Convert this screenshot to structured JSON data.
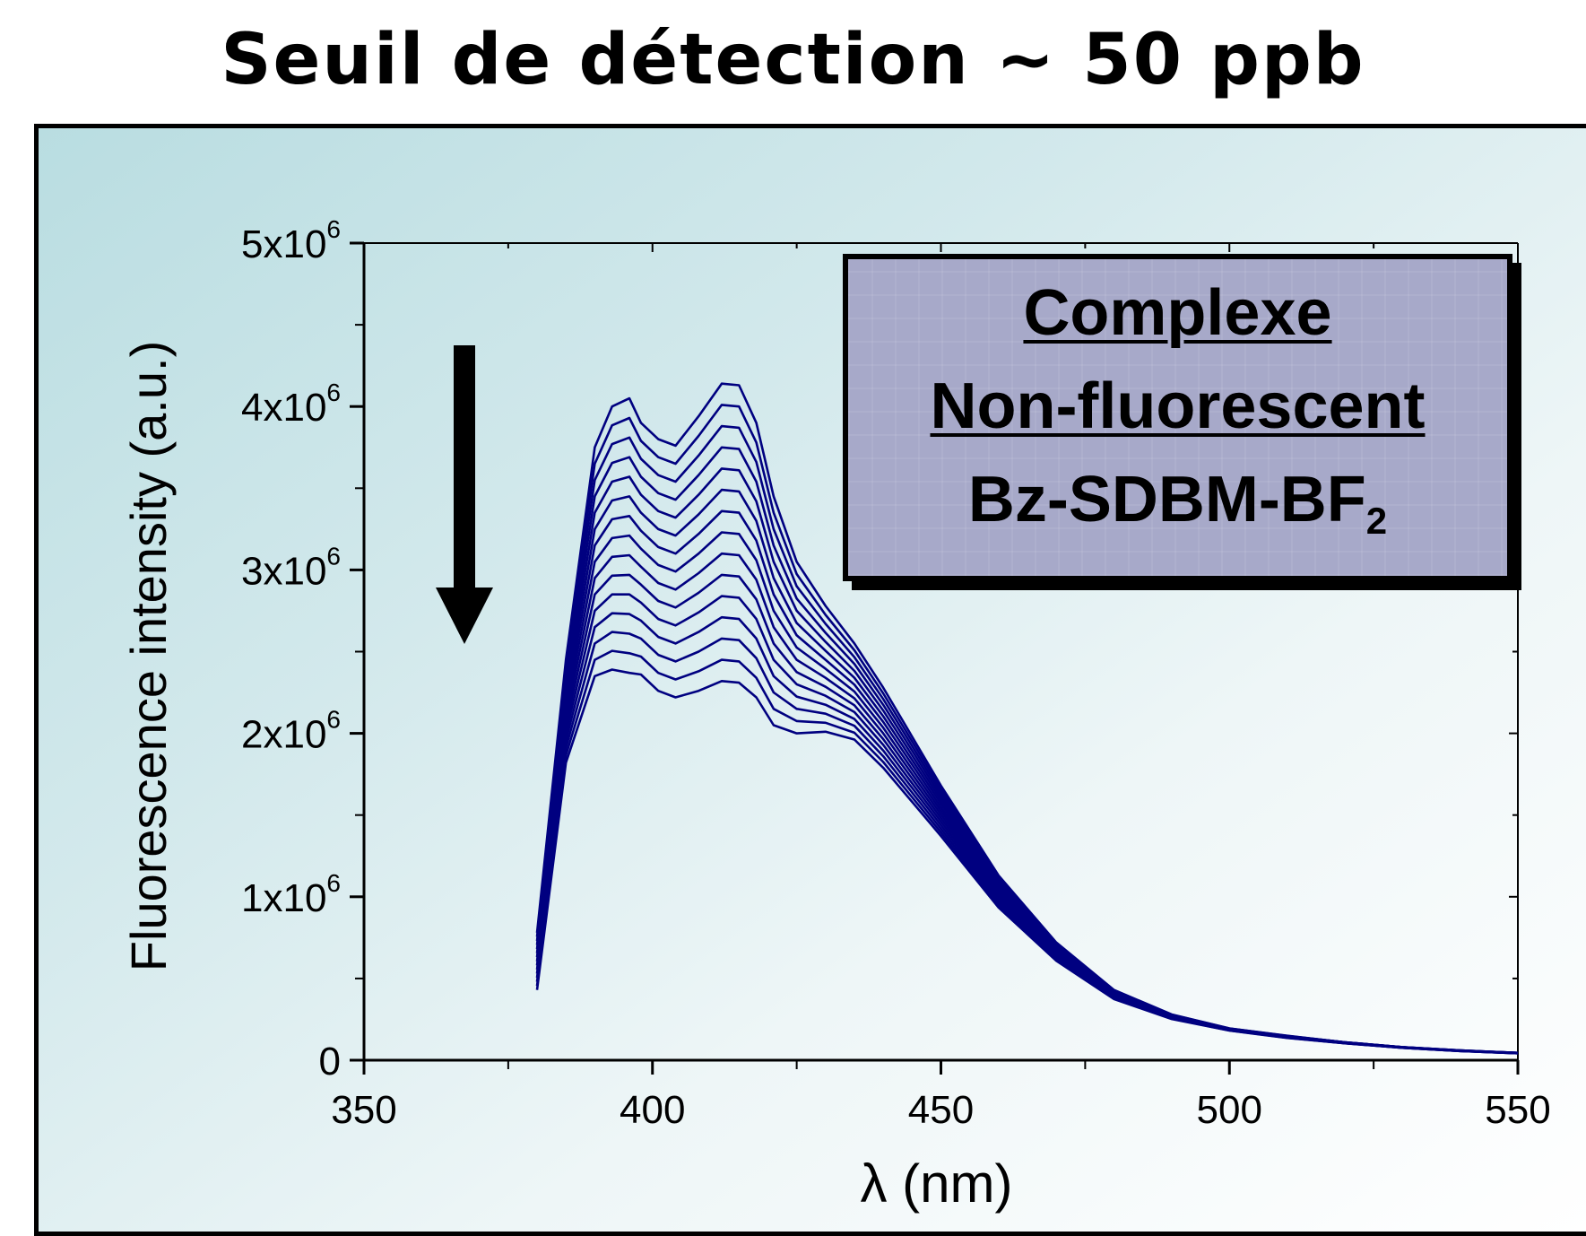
{
  "slide_title": "Seuil de détection ~ 50 ppb",
  "legend": {
    "line1": "Complexe",
    "line2": "Non-fluorescent",
    "line3_main": "Bz-SDBM-BF",
    "line3_sub": "2"
  },
  "colors": {
    "curves": "#000080",
    "arrow": "#000000"
  },
  "chart_data": {
    "type": "line",
    "title": "",
    "xlabel": "λ (nm)",
    "ylabel": "Fluorescence intensity (a.u.)",
    "xlim": [
      350,
      550
    ],
    "ylim": [
      0,
      5000000
    ],
    "x_ticks": [
      350,
      400,
      450,
      500,
      550
    ],
    "x_tick_labels": [
      "350",
      "400",
      "450",
      "500",
      "550"
    ],
    "y_ticks": [
      0,
      1000000,
      2000000,
      3000000,
      4000000,
      5000000
    ],
    "y_tick_labels": [
      {
        "base": "0",
        "exp": ""
      },
      {
        "base": "1x10",
        "exp": "6"
      },
      {
        "base": "2x10",
        "exp": "6"
      },
      {
        "base": "3x10",
        "exp": "6"
      },
      {
        "base": "4x10",
        "exp": "6"
      },
      {
        "base": "5x10",
        "exp": "6"
      }
    ],
    "grid": false,
    "annotation": "downward arrow: intensity decreases with increasing analyte concentration",
    "x": [
      380,
      385,
      390,
      393,
      396,
      398,
      401,
      404,
      408,
      412,
      415,
      418,
      421,
      425,
      430,
      435,
      440,
      450,
      460,
      470,
      480,
      490,
      500,
      510,
      520,
      530,
      540,
      550
    ],
    "series": [
      {
        "values": [
          780000,
          2450000,
          3750000,
          4000000,
          4050000,
          3900000,
          3800000,
          3760000,
          3940000,
          4140000,
          4130000,
          3900000,
          3450000,
          3050000,
          2780000,
          2550000,
          2280000,
          1680000,
          1130000,
          720000,
          430000,
          280000,
          195000,
          150000,
          110000,
          80000,
          60000,
          45000
        ]
      },
      {
        "values": [
          755000,
          2405000,
          3650000,
          3885000,
          3930000,
          3790000,
          3690000,
          3650000,
          3820000,
          4010000,
          4000000,
          3780000,
          3350000,
          2975000,
          2725000,
          2508000,
          2245000,
          1658000,
          1116000,
          712000,
          426000,
          278000,
          194000,
          149000,
          110000,
          80000,
          60000,
          45000
        ]
      },
      {
        "values": [
          730000,
          2360000,
          3550000,
          3770000,
          3810000,
          3680000,
          3580000,
          3540000,
          3700000,
          3880000,
          3870000,
          3660000,
          3250000,
          2900000,
          2670000,
          2466000,
          2210000,
          1636000,
          1102000,
          704000,
          422000,
          276000,
          193000,
          148000,
          109000,
          80000,
          60000,
          45000
        ]
      },
      {
        "values": [
          705000,
          2315000,
          3450000,
          3655000,
          3690000,
          3570000,
          3470000,
          3430000,
          3580000,
          3750000,
          3740000,
          3540000,
          3150000,
          2825000,
          2615000,
          2424000,
          2175000,
          1614000,
          1088000,
          696000,
          418000,
          274000,
          192000,
          147000,
          109000,
          79000,
          59000,
          45000
        ]
      },
      {
        "values": [
          680000,
          2270000,
          3350000,
          3540000,
          3570000,
          3460000,
          3360000,
          3320000,
          3460000,
          3620000,
          3610000,
          3420000,
          3050000,
          2750000,
          2560000,
          2382000,
          2140000,
          1592000,
          1074000,
          688000,
          414000,
          272000,
          191000,
          146000,
          108000,
          79000,
          59000,
          44000
        ]
      },
      {
        "values": [
          655000,
          2225000,
          3250000,
          3425000,
          3450000,
          3350000,
          3250000,
          3210000,
          3340000,
          3490000,
          3480000,
          3300000,
          2950000,
          2675000,
          2505000,
          2340000,
          2105000,
          1570000,
          1060000,
          680000,
          410000,
          270000,
          190000,
          145000,
          108000,
          79000,
          59000,
          44000
        ]
      },
      {
        "values": [
          630000,
          2180000,
          3150000,
          3310000,
          3330000,
          3240000,
          3140000,
          3100000,
          3220000,
          3360000,
          3350000,
          3180000,
          2850000,
          2600000,
          2450000,
          2298000,
          2070000,
          1548000,
          1046000,
          672000,
          406000,
          268000,
          189000,
          144000,
          107000,
          78000,
          58000,
          44000
        ]
      },
      {
        "values": [
          605000,
          2135000,
          3050000,
          3195000,
          3210000,
          3130000,
          3030000,
          2990000,
          3100000,
          3230000,
          3220000,
          3060000,
          2750000,
          2525000,
          2395000,
          2256000,
          2035000,
          1526000,
          1032000,
          664000,
          402000,
          266000,
          188000,
          143000,
          107000,
          78000,
          58000,
          44000
        ]
      },
      {
        "values": [
          580000,
          2090000,
          2950000,
          3080000,
          3090000,
          3020000,
          2920000,
          2880000,
          2980000,
          3100000,
          3090000,
          2940000,
          2650000,
          2450000,
          2340000,
          2214000,
          2000000,
          1504000,
          1018000,
          656000,
          398000,
          264000,
          187000,
          142000,
          106000,
          78000,
          58000,
          43000
        ]
      },
      {
        "values": [
          555000,
          2045000,
          2850000,
          2965000,
          2970000,
          2910000,
          2810000,
          2770000,
          2860000,
          2970000,
          2960000,
          2820000,
          2550000,
          2375000,
          2285000,
          2172000,
          1965000,
          1482000,
          1004000,
          648000,
          394000,
          262000,
          186000,
          141000,
          106000,
          77000,
          57000,
          43000
        ]
      },
      {
        "values": [
          530000,
          2000000,
          2750000,
          2850000,
          2850000,
          2800000,
          2700000,
          2660000,
          2740000,
          2840000,
          2830000,
          2700000,
          2450000,
          2300000,
          2230000,
          2130000,
          1930000,
          1460000,
          990000,
          640000,
          390000,
          260000,
          185000,
          140000,
          105000,
          77000,
          57000,
          43000
        ]
      },
      {
        "values": [
          505000,
          1955000,
          2650000,
          2735000,
          2730000,
          2690000,
          2590000,
          2550000,
          2620000,
          2710000,
          2700000,
          2580000,
          2350000,
          2225000,
          2175000,
          2088000,
          1895000,
          1438000,
          976000,
          632000,
          386000,
          258000,
          184000,
          139000,
          105000,
          77000,
          57000,
          43000
        ]
      },
      {
        "values": [
          480000,
          1910000,
          2550000,
          2620000,
          2610000,
          2580000,
          2480000,
          2440000,
          2500000,
          2580000,
          2570000,
          2460000,
          2250000,
          2150000,
          2120000,
          2046000,
          1860000,
          1416000,
          962000,
          624000,
          382000,
          256000,
          183000,
          138000,
          104000,
          76000,
          56000,
          42000
        ]
      },
      {
        "values": [
          455000,
          1865000,
          2450000,
          2505000,
          2490000,
          2470000,
          2370000,
          2330000,
          2380000,
          2450000,
          2440000,
          2340000,
          2150000,
          2075000,
          2065000,
          2004000,
          1825000,
          1394000,
          948000,
          616000,
          378000,
          254000,
          182000,
          137000,
          104000,
          76000,
          56000,
          42000
        ]
      },
      {
        "values": [
          430000,
          1820000,
          2350000,
          2390000,
          2370000,
          2360000,
          2260000,
          2220000,
          2260000,
          2320000,
          2310000,
          2220000,
          2050000,
          2000000,
          2010000,
          1962000,
          1790000,
          1372000,
          934000,
          608000,
          374000,
          252000,
          181000,
          136000,
          103000,
          76000,
          56000,
          42000
        ]
      }
    ]
  }
}
